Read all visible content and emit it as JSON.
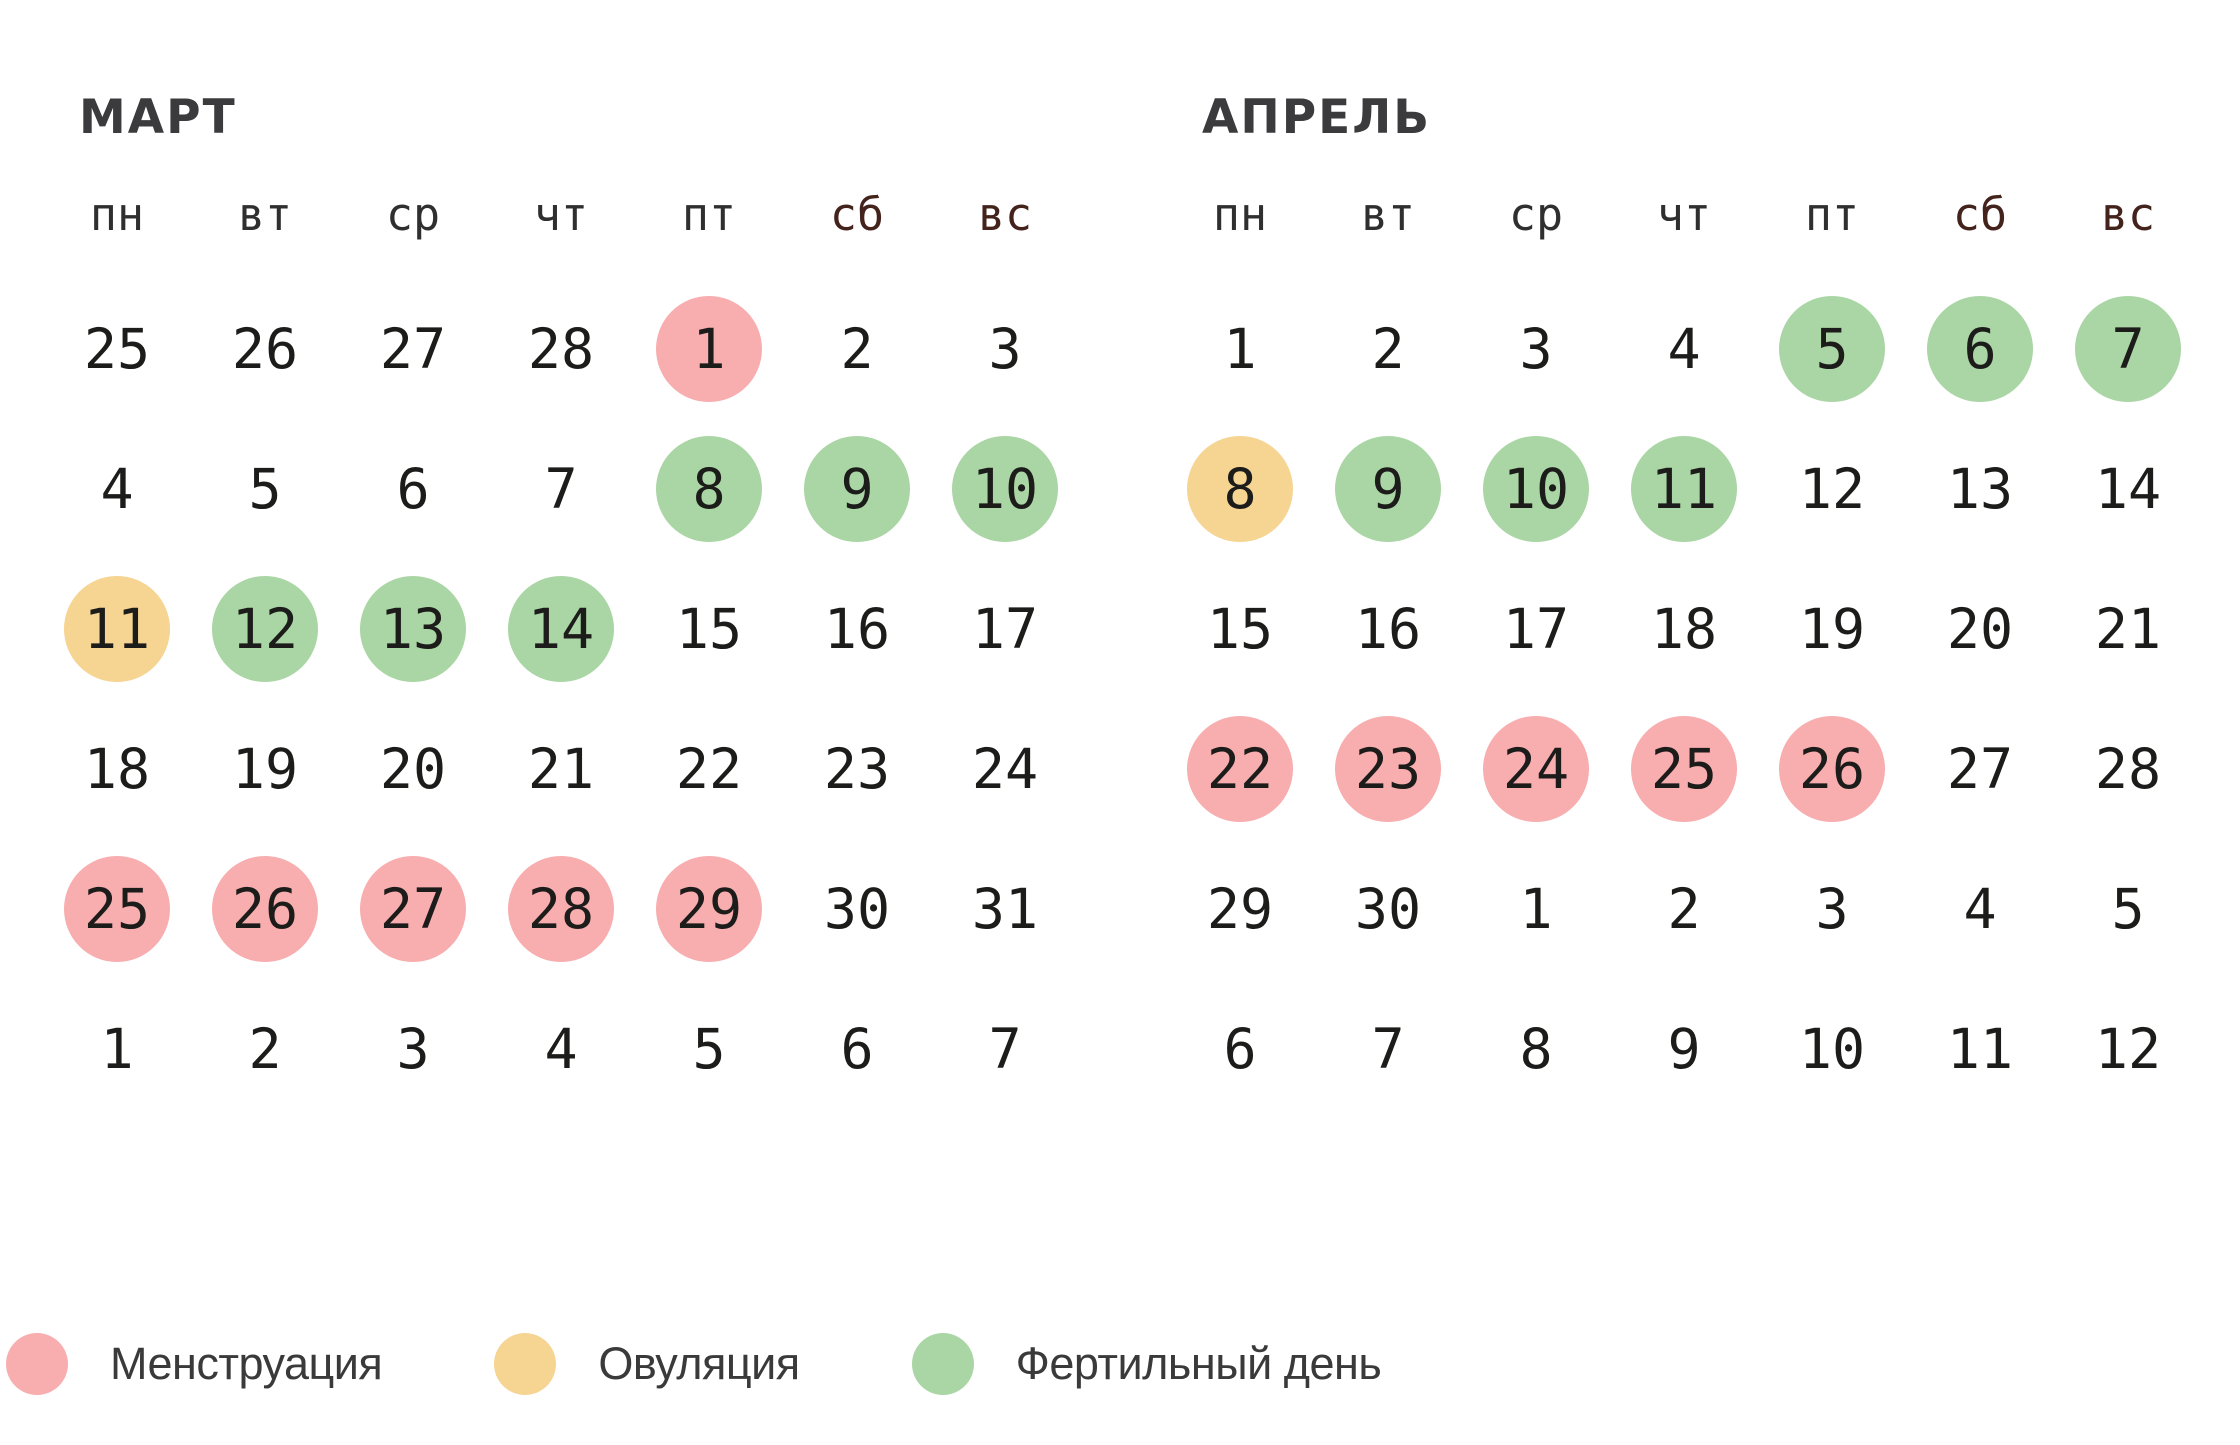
{
  "colors": {
    "background": "#ffffff",
    "menstruation": "#f8adaf",
    "ovulation": "#f6d492",
    "fertile": "#aad5a4",
    "day_text": "#1c1c1a",
    "weekday_text": "#2f2f2f",
    "weekend_text": "#44231c",
    "title_text": "#3b3b3d",
    "legend_text": "#3a3a3a"
  },
  "weekdays": [
    "пн",
    "вт",
    "ср",
    "чт",
    "пт",
    "сб",
    "вс"
  ],
  "weekend_indices": [
    5,
    6
  ],
  "months": [
    {
      "title": "МАРТ",
      "weeks": [
        [
          {
            "d": "25"
          },
          {
            "d": "26"
          },
          {
            "d": "27"
          },
          {
            "d": "28"
          },
          {
            "d": "1",
            "mark": "menstruation"
          },
          {
            "d": "2"
          },
          {
            "d": "3"
          }
        ],
        [
          {
            "d": "4"
          },
          {
            "d": "5"
          },
          {
            "d": "6"
          },
          {
            "d": "7"
          },
          {
            "d": "8",
            "mark": "fertile"
          },
          {
            "d": "9",
            "mark": "fertile"
          },
          {
            "d": "10",
            "mark": "fertile"
          }
        ],
        [
          {
            "d": "11",
            "mark": "ovulation"
          },
          {
            "d": "12",
            "mark": "fertile"
          },
          {
            "d": "13",
            "mark": "fertile"
          },
          {
            "d": "14",
            "mark": "fertile"
          },
          {
            "d": "15"
          },
          {
            "d": "16"
          },
          {
            "d": "17"
          }
        ],
        [
          {
            "d": "18"
          },
          {
            "d": "19"
          },
          {
            "d": "20"
          },
          {
            "d": "21"
          },
          {
            "d": "22"
          },
          {
            "d": "23"
          },
          {
            "d": "24"
          }
        ],
        [
          {
            "d": "25",
            "mark": "menstruation"
          },
          {
            "d": "26",
            "mark": "menstruation"
          },
          {
            "d": "27",
            "mark": "menstruation"
          },
          {
            "d": "28",
            "mark": "menstruation"
          },
          {
            "d": "29",
            "mark": "menstruation"
          },
          {
            "d": "30"
          },
          {
            "d": "31"
          }
        ],
        [
          {
            "d": "1"
          },
          {
            "d": "2"
          },
          {
            "d": "3"
          },
          {
            "d": "4"
          },
          {
            "d": "5"
          },
          {
            "d": "6"
          },
          {
            "d": "7"
          }
        ]
      ]
    },
    {
      "title": "АПРЕЛЬ",
      "weeks": [
        [
          {
            "d": "1"
          },
          {
            "d": "2"
          },
          {
            "d": "3"
          },
          {
            "d": "4"
          },
          {
            "d": "5",
            "mark": "fertile"
          },
          {
            "d": "6",
            "mark": "fertile"
          },
          {
            "d": "7",
            "mark": "fertile"
          }
        ],
        [
          {
            "d": "8",
            "mark": "ovulation"
          },
          {
            "d": "9",
            "mark": "fertile"
          },
          {
            "d": "10",
            "mark": "fertile"
          },
          {
            "d": "11",
            "mark": "fertile"
          },
          {
            "d": "12"
          },
          {
            "d": "13"
          },
          {
            "d": "14"
          }
        ],
        [
          {
            "d": "15"
          },
          {
            "d": "16"
          },
          {
            "d": "17"
          },
          {
            "d": "18"
          },
          {
            "d": "19"
          },
          {
            "d": "20"
          },
          {
            "d": "21"
          }
        ],
        [
          {
            "d": "22",
            "mark": "menstruation"
          },
          {
            "d": "23",
            "mark": "menstruation"
          },
          {
            "d": "24",
            "mark": "menstruation"
          },
          {
            "d": "25",
            "mark": "menstruation"
          },
          {
            "d": "26",
            "mark": "menstruation"
          },
          {
            "d": "27"
          },
          {
            "d": "28"
          }
        ],
        [
          {
            "d": "29"
          },
          {
            "d": "30"
          },
          {
            "d": "1"
          },
          {
            "d": "2"
          },
          {
            "d": "3"
          },
          {
            "d": "4"
          },
          {
            "d": "5"
          }
        ],
        [
          {
            "d": "6"
          },
          {
            "d": "7"
          },
          {
            "d": "8"
          },
          {
            "d": "9"
          },
          {
            "d": "10"
          },
          {
            "d": "11"
          },
          {
            "d": "12"
          }
        ]
      ]
    }
  ],
  "legend": [
    {
      "label": "Менструация",
      "key": "menstruation"
    },
    {
      "label": "Овуляция",
      "key": "ovulation"
    },
    {
      "label": "Фертильный день",
      "key": "fertile"
    }
  ]
}
